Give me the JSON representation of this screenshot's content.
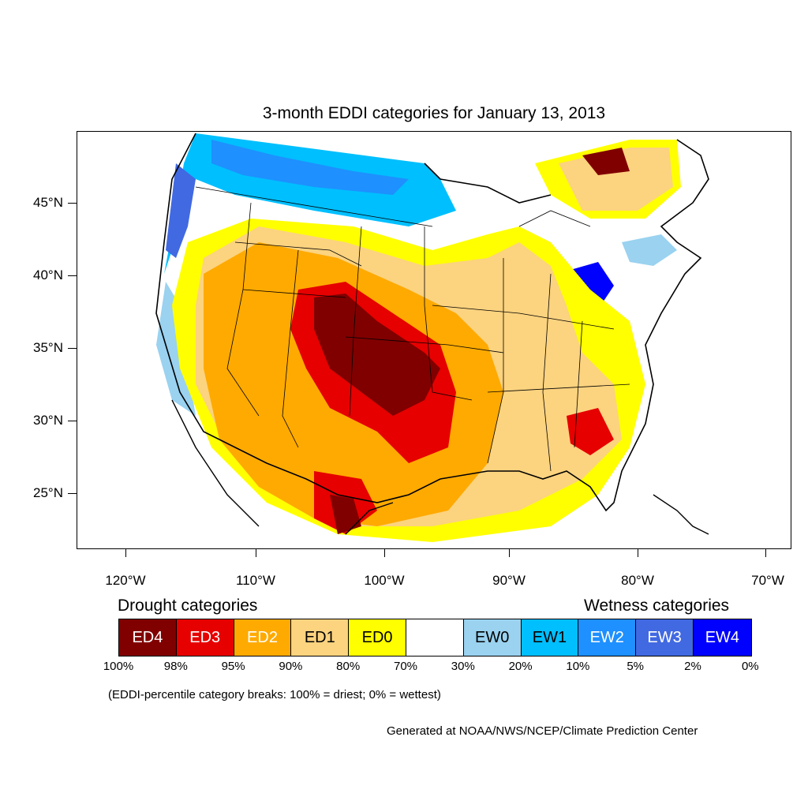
{
  "title": "3-month EDDI categories for January 13, 2013",
  "latitude_labels": [
    "45°N",
    "40°N",
    "35°N",
    "30°N",
    "25°N"
  ],
  "longitude_labels": [
    "120°W",
    "110°W",
    "100°W",
    "90°W",
    "80°W",
    "70°W"
  ],
  "legend": {
    "drought_heading": "Drought categories",
    "wetness_heading": "Wetness categories",
    "categories": [
      {
        "label": "ED4",
        "color": "#800000",
        "text_color": "#ffffff"
      },
      {
        "label": "ED3",
        "color": "#e60000",
        "text_color": "#ffffff"
      },
      {
        "label": "ED2",
        "color": "#ffaa00",
        "text_color": "#ffffff"
      },
      {
        "label": "ED1",
        "color": "#fcd37f",
        "text_color": "#000000"
      },
      {
        "label": "ED0",
        "color": "#ffff00",
        "text_color": "#000000"
      },
      {
        "label": "",
        "color": "#ffffff",
        "text_color": "#000000"
      },
      {
        "label": "EW0",
        "color": "#9ad2f0",
        "text_color": "#000000"
      },
      {
        "label": "EW1",
        "color": "#00bfff",
        "text_color": "#000000"
      },
      {
        "label": "EW2",
        "color": "#1e90ff",
        "text_color": "#ffffff"
      },
      {
        "label": "EW3",
        "color": "#4169e1",
        "text_color": "#ffffff"
      },
      {
        "label": "EW4",
        "color": "#0000ff",
        "text_color": "#ffffff"
      }
    ],
    "percentiles": [
      "100%",
      "98%",
      "95%",
      "90%",
      "80%",
      "70%",
      "30%",
      "20%",
      "10%",
      "5%",
      "2%",
      "0%"
    ]
  },
  "note": "(EDDI-percentile category breaks: 100% = driest; 0% = wettest)",
  "credit": "Generated at NOAA/NWS/NCEP/Climate Prediction Center"
}
